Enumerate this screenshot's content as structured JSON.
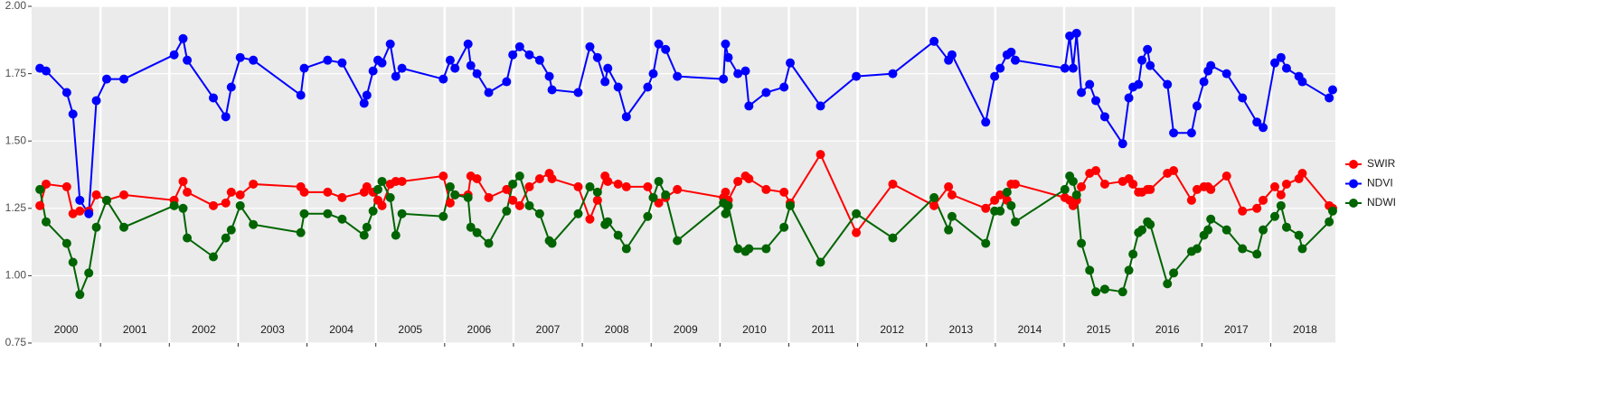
{
  "chart_data": {
    "type": "line",
    "x": [
      2000.12,
      2000.21,
      2000.51,
      2000.6,
      2000.7,
      2000.83,
      2000.94,
      2001.09,
      2001.34,
      2002.07,
      2002.2,
      2002.26,
      2002.64,
      2002.82,
      2002.9,
      2003.03,
      2003.22,
      2003.91,
      2003.96,
      2004.3,
      2004.51,
      2004.83,
      2004.87,
      2004.96,
      2005.03,
      2005.09,
      2005.21,
      2005.29,
      2005.38,
      2005.98,
      2006.08,
      2006.15,
      2006.34,
      2006.38,
      2006.47,
      2006.64,
      2006.9,
      2006.99,
      2007.09,
      2007.23,
      2007.38,
      2007.52,
      2007.56,
      2007.94,
      2008.11,
      2008.22,
      2008.33,
      2008.37,
      2008.52,
      2008.64,
      2008.95,
      2009.03,
      2009.11,
      2009.21,
      2009.38,
      2010.05,
      2010.08,
      2010.12,
      2010.26,
      2010.37,
      2010.42,
      2010.67,
      2010.93,
      2011.02,
      2011.46,
      2011.98,
      2012.51,
      2013.11,
      2013.32,
      2013.37,
      2013.86,
      2013.99,
      2014.07,
      2014.17,
      2014.23,
      2014.29,
      2015.01,
      2015.08,
      2015.13,
      2015.18,
      2015.25,
      2015.37,
      2015.46,
      2015.59,
      2015.85,
      2015.94,
      2016.0,
      2016.08,
      2016.13,
      2016.21,
      2016.25,
      2016.5,
      2016.59,
      2016.85,
      2016.93,
      2017.03,
      2017.09,
      2017.13,
      2017.36,
      2017.59,
      2017.8,
      2017.89,
      2018.06,
      2018.15,
      2018.23,
      2018.41,
      2018.46,
      2018.85,
      2018.9
    ],
    "series": [
      {
        "name": "SWIR",
        "color": "#ff0000",
        "values": [
          1.26,
          1.34,
          1.33,
          1.23,
          1.24,
          1.24,
          1.3,
          1.28,
          1.3,
          1.28,
          1.35,
          1.31,
          1.26,
          1.27,
          1.31,
          1.3,
          1.34,
          1.33,
          1.31,
          1.31,
          1.29,
          1.31,
          1.33,
          1.31,
          1.28,
          1.26,
          1.34,
          1.35,
          1.35,
          1.37,
          1.27,
          1.3,
          1.3,
          1.37,
          1.36,
          1.29,
          1.32,
          1.28,
          1.26,
          1.33,
          1.36,
          1.38,
          1.36,
          1.33,
          1.21,
          1.28,
          1.37,
          1.35,
          1.34,
          1.33,
          1.33,
          1.29,
          1.27,
          1.29,
          1.32,
          1.29,
          1.31,
          1.28,
          1.35,
          1.37,
          1.36,
          1.32,
          1.31,
          1.27,
          1.45,
          1.16,
          1.34,
          1.26,
          1.33,
          1.3,
          1.25,
          1.28,
          1.3,
          1.28,
          1.34,
          1.34,
          1.29,
          1.28,
          1.26,
          1.28,
          1.33,
          1.38,
          1.39,
          1.34,
          1.35,
          1.36,
          1.34,
          1.31,
          1.31,
          1.32,
          1.32,
          1.38,
          1.39,
          1.28,
          1.32,
          1.33,
          1.33,
          1.32,
          1.37,
          1.24,
          1.25,
          1.28,
          1.33,
          1.3,
          1.34,
          1.36,
          1.38,
          1.26,
          1.25
        ]
      },
      {
        "name": "NDVI",
        "color": "#0000ff",
        "values": [
          1.77,
          1.76,
          1.68,
          1.6,
          1.28,
          1.23,
          1.65,
          1.73,
          1.73,
          1.82,
          1.88,
          1.8,
          1.66,
          1.59,
          1.7,
          1.81,
          1.8,
          1.67,
          1.77,
          1.8,
          1.79,
          1.64,
          1.67,
          1.76,
          1.8,
          1.79,
          1.86,
          1.74,
          1.77,
          1.73,
          1.8,
          1.77,
          1.86,
          1.78,
          1.75,
          1.68,
          1.72,
          1.82,
          1.85,
          1.82,
          1.8,
          1.74,
          1.69,
          1.68,
          1.85,
          1.81,
          1.72,
          1.77,
          1.7,
          1.59,
          1.7,
          1.75,
          1.86,
          1.84,
          1.74,
          1.73,
          1.86,
          1.81,
          1.75,
          1.76,
          1.63,
          1.68,
          1.7,
          1.79,
          1.63,
          1.74,
          1.75,
          1.87,
          1.8,
          1.82,
          1.57,
          1.74,
          1.77,
          1.82,
          1.83,
          1.8,
          1.77,
          1.89,
          1.77,
          1.9,
          1.68,
          1.71,
          1.65,
          1.59,
          1.49,
          1.66,
          1.7,
          1.71,
          1.8,
          1.84,
          1.78,
          1.71,
          1.53,
          1.53,
          1.63,
          1.72,
          1.76,
          1.78,
          1.75,
          1.66,
          1.57,
          1.55,
          1.79,
          1.81,
          1.77,
          1.74,
          1.72,
          1.66,
          1.69
        ]
      },
      {
        "name": "NDWI",
        "color": "#006400",
        "values": [
          1.32,
          1.2,
          1.12,
          1.05,
          0.93,
          1.01,
          1.18,
          1.28,
          1.18,
          1.26,
          1.25,
          1.14,
          1.07,
          1.14,
          1.17,
          1.26,
          1.19,
          1.16,
          1.23,
          1.23,
          1.21,
          1.15,
          1.18,
          1.24,
          1.32,
          1.35,
          1.29,
          1.15,
          1.23,
          1.22,
          1.33,
          1.3,
          1.29,
          1.18,
          1.16,
          1.12,
          1.24,
          1.34,
          1.37,
          1.26,
          1.23,
          1.13,
          1.12,
          1.23,
          1.33,
          1.31,
          1.19,
          1.2,
          1.15,
          1.1,
          1.22,
          1.29,
          1.35,
          1.3,
          1.13,
          1.27,
          1.23,
          1.26,
          1.1,
          1.09,
          1.1,
          1.1,
          1.18,
          1.26,
          1.05,
          1.23,
          1.14,
          1.29,
          1.17,
          1.22,
          1.12,
          1.24,
          1.24,
          1.31,
          1.26,
          1.2,
          1.32,
          1.37,
          1.35,
          1.3,
          1.12,
          1.02,
          0.94,
          0.95,
          0.94,
          1.02,
          1.08,
          1.16,
          1.17,
          1.2,
          1.19,
          0.97,
          1.01,
          1.09,
          1.1,
          1.15,
          1.17,
          1.21,
          1.17,
          1.1,
          1.08,
          1.17,
          1.22,
          1.26,
          1.18,
          1.15,
          1.1,
          1.2,
          1.24
        ]
      }
    ],
    "xlim": [
      2000,
      2018.94
    ],
    "xticks": [
      {
        "value": 2000.5,
        "label": "2000"
      },
      {
        "value": 2001.5,
        "label": "2001"
      },
      {
        "value": 2002.5,
        "label": "2002"
      },
      {
        "value": 2003.5,
        "label": "2003"
      },
      {
        "value": 2004.5,
        "label": "2004"
      },
      {
        "value": 2005.5,
        "label": "2005"
      },
      {
        "value": 2006.5,
        "label": "2006"
      },
      {
        "value": 2007.5,
        "label": "2007"
      },
      {
        "value": 2008.5,
        "label": "2008"
      },
      {
        "value": 2009.5,
        "label": "2009"
      },
      {
        "value": 2010.5,
        "label": "2010"
      },
      {
        "value": 2011.5,
        "label": "2011"
      },
      {
        "value": 2012.5,
        "label": "2012"
      },
      {
        "value": 2013.5,
        "label": "2013"
      },
      {
        "value": 2014.5,
        "label": "2014"
      },
      {
        "value": 2015.5,
        "label": "2015"
      },
      {
        "value": 2016.5,
        "label": "2016"
      },
      {
        "value": 2017.5,
        "label": "2017"
      },
      {
        "value": 2018.5,
        "label": "2018"
      }
    ],
    "ylim": [
      0.75,
      2.0
    ],
    "yticks": [
      {
        "value": 0.75,
        "label": "0.75"
      },
      {
        "value": 1.0,
        "label": "1.00"
      },
      {
        "value": 1.25,
        "label": "1.25"
      },
      {
        "value": 1.5,
        "label": "1.50"
      },
      {
        "value": 1.75,
        "label": "1.75"
      },
      {
        "value": 2.0,
        "label": "2.00"
      }
    ],
    "grid": true,
    "legend": "right"
  }
}
